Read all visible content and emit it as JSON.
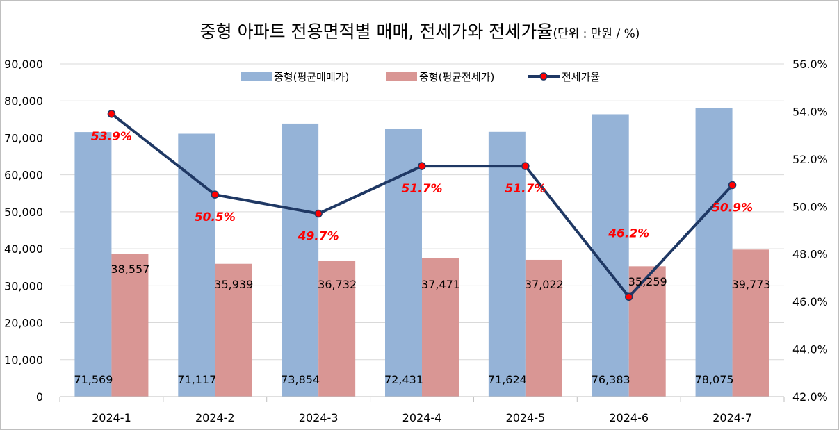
{
  "chart_data": {
    "type": "bar",
    "title": "중형 아파트 전용면적별 매매, 전세가와 전세가율",
    "unit_note": "(단위 : 만원 / %)",
    "categories": [
      "2024-1",
      "2024-2",
      "2024-3",
      "2024-4",
      "2024-5",
      "2024-6",
      "2024-7"
    ],
    "series": [
      {
        "name": "중형(평균매매가)",
        "type": "bar",
        "axis": "left",
        "color": "#95b3d7",
        "values": [
          71569,
          71117,
          73854,
          72431,
          71624,
          76383,
          78075
        ],
        "labels": [
          "71,569",
          "71,117",
          "73,854",
          "72,431",
          "71,624",
          "76,383",
          "78,075"
        ]
      },
      {
        "name": "중형(평균전세가)",
        "type": "bar",
        "axis": "left",
        "color": "#d99694",
        "values": [
          38557,
          35939,
          36732,
          37471,
          37022,
          35259,
          39773
        ],
        "labels": [
          "38,557",
          "35,939",
          "36,732",
          "37,471",
          "37,022",
          "35,259",
          "39,773"
        ]
      },
      {
        "name": "전세가율",
        "type": "line",
        "axis": "right",
        "color": "#1f3864",
        "marker_color": "#ff0000",
        "values": [
          53.9,
          50.5,
          49.7,
          51.7,
          51.7,
          46.2,
          50.9
        ],
        "labels": [
          "53.9%",
          "50.5%",
          "49.7%",
          "51.7%",
          "51.7%",
          "46.2%",
          "50.9%"
        ]
      }
    ],
    "left_axis": {
      "ylim": [
        0,
        90000
      ],
      "ticks": [
        "0",
        "10,000",
        "20,000",
        "30,000",
        "40,000",
        "50,000",
        "60,000",
        "70,000",
        "80,000",
        "90,000"
      ]
    },
    "right_axis": {
      "ylim": [
        42,
        56
      ],
      "ticks": [
        "42.0%",
        "44.0%",
        "46.0%",
        "48.0%",
        "50.0%",
        "52.0%",
        "54.0%",
        "56.0%"
      ]
    },
    "grid": true,
    "legend_position": "top-center"
  }
}
